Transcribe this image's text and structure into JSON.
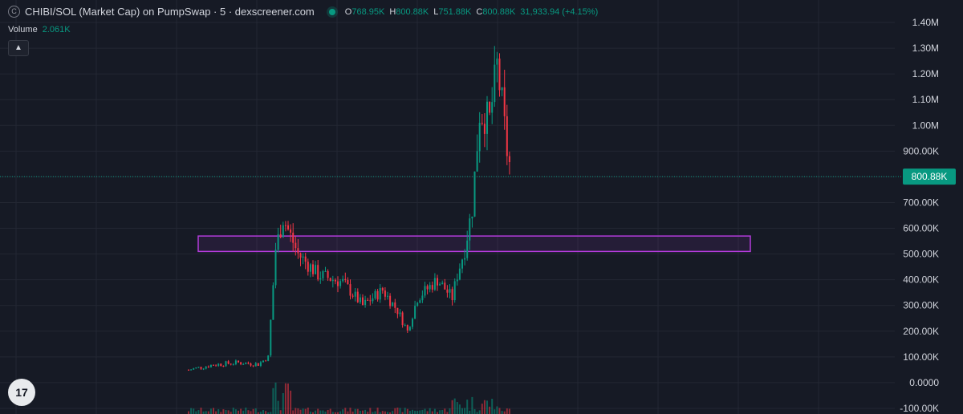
{
  "header": {
    "icon": "coin-icon",
    "title": "CHIBI/SOL (Market Cap) on PumpSwap · 5 · dexscreener.com",
    "ohlc": {
      "o_label": "O",
      "o_value": "768.95K",
      "h_label": "H",
      "h_value": "800.88K",
      "l_label": "L",
      "l_value": "751.88K",
      "c_label": "C",
      "c_value": "800.88K",
      "change": "31,933.94 (+4.15%)"
    }
  },
  "volume": {
    "label": "Volume",
    "value": "2.061K"
  },
  "colors": {
    "background": "#161a25",
    "grid": "#232733",
    "up": "#089981",
    "down": "#f23645",
    "zone": "#b43cdc",
    "price_tag": "#089981"
  },
  "chart_data": {
    "type": "candlestick",
    "y_ticks": [
      "1.40M",
      "1.30M",
      "1.20M",
      "1.10M",
      "1.00M",
      "900.00K",
      "800.00K",
      "700.00K",
      "600.00K",
      "500.00K",
      "400.00K",
      "300.00K",
      "200.00K",
      "100.00K",
      "0.0000",
      "-100.00K"
    ],
    "ylim": [
      -100000,
      1400000
    ],
    "current_price": 800880,
    "current_price_label": "800.88K",
    "zone": {
      "low": 510000,
      "high": 570000
    },
    "candle_count": 130,
    "series": [
      {
        "name": "Market Cap",
        "anchors_close": [
          [
            0,
            50000
          ],
          [
            10,
            70000
          ],
          [
            20,
            78000
          ],
          [
            28,
            72000
          ],
          [
            32,
            100000
          ],
          [
            35,
            520000
          ],
          [
            38,
            640000
          ],
          [
            44,
            500000
          ],
          [
            52,
            420000
          ],
          [
            62,
            390000
          ],
          [
            70,
            300000
          ],
          [
            78,
            360000
          ],
          [
            84,
            280000
          ],
          [
            88,
            200000
          ],
          [
            92,
            330000
          ],
          [
            100,
            400000
          ],
          [
            106,
            330000
          ],
          [
            108,
            420000
          ],
          [
            111,
            520000
          ],
          [
            114,
            680000
          ],
          [
            117,
            1050000
          ],
          [
            121,
            1020000
          ],
          [
            124,
            1230000
          ],
          [
            126,
            1080000
          ],
          [
            128,
            900000
          ],
          [
            130,
            800000
          ]
        ]
      },
      {
        "name": "Volume",
        "level": "low, spikes near breakouts"
      }
    ]
  },
  "watermark": {
    "icon": "tradingview-logo-icon",
    "text": "17"
  }
}
